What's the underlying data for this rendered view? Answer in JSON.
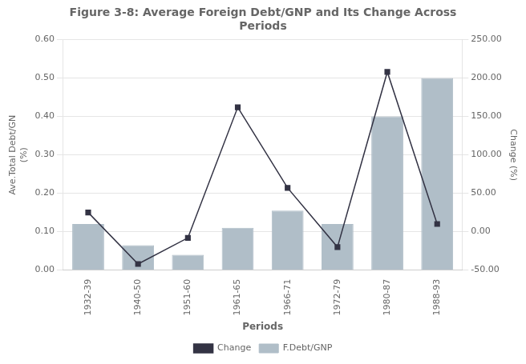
{
  "chart_data": {
    "type": "bar",
    "title": "Figure 3-8: Average Foreign Debt/GNP and Its Change Across\nPeriods",
    "xlabel": "Periods",
    "ylabel": "Ave.Total Debt/GN\n(%)",
    "y2label": "Change (%)",
    "categories": [
      "1932-39",
      "1940-50",
      "1951-60",
      "1961-65",
      "1966-71",
      "1972-79",
      "1980-87",
      "1988-93"
    ],
    "series": [
      {
        "name": "F.Debt/GNP",
        "type": "bar",
        "color": "#b0bec8",
        "values": [
          0.12,
          0.065,
          0.04,
          0.11,
          0.155,
          0.12,
          0.4,
          0.5
        ]
      },
      {
        "name": "Change",
        "type": "line",
        "axis": "y2",
        "color": "#333344",
        "marker": "square",
        "values": [
          25.0,
          -42.0,
          -8.0,
          162.0,
          57.0,
          -20.0,
          208.0,
          10.0
        ]
      }
    ],
    "ylim": [
      0.0,
      0.6
    ],
    "yticks": [
      {
        "value": 0.0,
        "label": "0.00"
      },
      {
        "value": 0.1,
        "label": "0.10"
      },
      {
        "value": 0.2,
        "label": "0.20"
      },
      {
        "value": 0.3,
        "label": "0.30"
      },
      {
        "value": 0.4,
        "label": "0.40"
      },
      {
        "value": 0.5,
        "label": "0.50"
      },
      {
        "value": 0.6,
        "label": "0.60"
      }
    ],
    "y2lim": [
      -50.0,
      250.0
    ],
    "y2ticks": [
      {
        "value": -50,
        "label": "-50.00"
      },
      {
        "value": 0,
        "label": "0.00"
      },
      {
        "value": 50,
        "label": "50.00"
      },
      {
        "value": 100,
        "label": "100.00"
      },
      {
        "value": 150,
        "label": "150.00"
      },
      {
        "value": 200,
        "label": "200.00"
      },
      {
        "value": 250,
        "label": "250.00"
      }
    ],
    "grid": true,
    "legend": "bottom"
  }
}
